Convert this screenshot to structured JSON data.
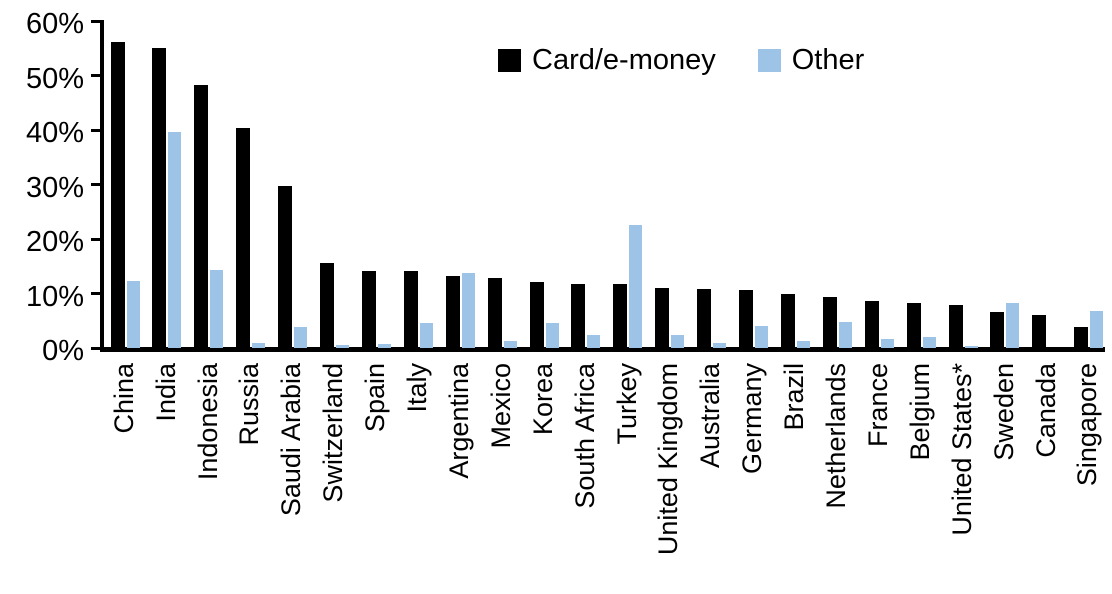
{
  "chart_data": {
    "type": "bar",
    "title": "",
    "xlabel": "",
    "ylabel": "",
    "ylim": [
      0,
      60
    ],
    "y_ticks": [
      0,
      10,
      20,
      30,
      40,
      50,
      60
    ],
    "y_tick_suffix": "%",
    "grid": false,
    "legend_position": "top-center",
    "categories": [
      "China",
      "India",
      "Indonesia",
      "Russia",
      "Saudi Arabia",
      "Switzerland",
      "Spain",
      "Italy",
      "Argentina",
      "Mexico",
      "Korea",
      "South Africa",
      "Turkey",
      "United Kingdom",
      "Australia",
      "Germany",
      "Brazil",
      "Netherlands",
      "France",
      "Belgium",
      "United States*",
      "Sweden",
      "Canada",
      "Singapore"
    ],
    "series": [
      {
        "name": "Card/e-money",
        "color": "#000000",
        "values": [
          56.2,
          55.0,
          48.3,
          40.4,
          29.7,
          15.6,
          14.2,
          14.1,
          13.3,
          12.9,
          12.2,
          11.7,
          11.7,
          11.1,
          10.9,
          10.6,
          10.0,
          9.3,
          8.7,
          8.2,
          7.9,
          6.6,
          6.0,
          3.9
        ]
      },
      {
        "name": "Other",
        "color": "#9dc3e6",
        "values": [
          12.3,
          39.7,
          14.4,
          0.9,
          3.8,
          0.6,
          0.8,
          4.5,
          13.8,
          1.2,
          4.6,
          2.3,
          22.6,
          2.3,
          1.0,
          4.0,
          1.2,
          4.8,
          1.6,
          2.1,
          0.3,
          8.2,
          0.0,
          6.7
        ]
      }
    ]
  }
}
